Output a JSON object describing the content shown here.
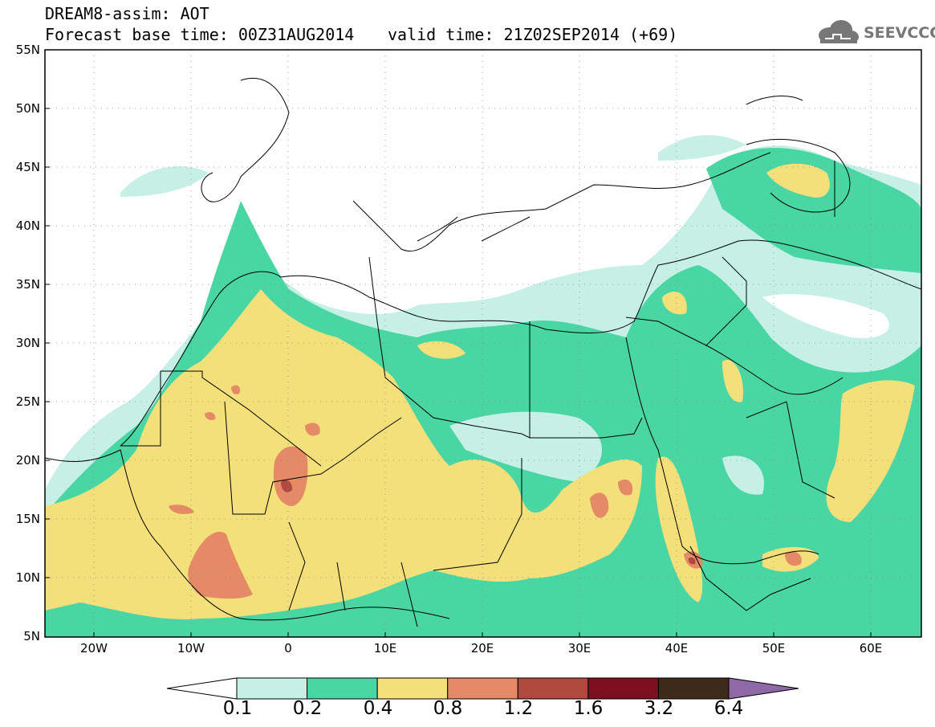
{
  "header": {
    "line1": "DREAM8-assim: AOT",
    "line2": "Forecast base time: 00Z31AUG2014",
    "valid": "valid time: 21Z02SEP2014 (+69)"
  },
  "logo": {
    "text": "SEEVCCC",
    "icon": "cloud-icon"
  },
  "axes": {
    "lat_labels": [
      "55N",
      "50N",
      "45N",
      "40N",
      "35N",
      "30N",
      "25N",
      "20N",
      "15N",
      "10N",
      "5N"
    ],
    "lon_labels": [
      "20W",
      "10W",
      "0",
      "10E",
      "20E",
      "30E",
      "40E",
      "50E",
      "60E"
    ]
  },
  "legend": {
    "levels": [
      "0.1",
      "0.2",
      "0.4",
      "0.8",
      "1.2",
      "1.6",
      "3.2",
      "6.4"
    ],
    "colors": [
      "#c6f0e6",
      "#49d5a4",
      "#f4e07a",
      "#e48a66",
      "#b04a40",
      "#7d0f22",
      "#3e2a18",
      "#8f68a8"
    ]
  }
}
